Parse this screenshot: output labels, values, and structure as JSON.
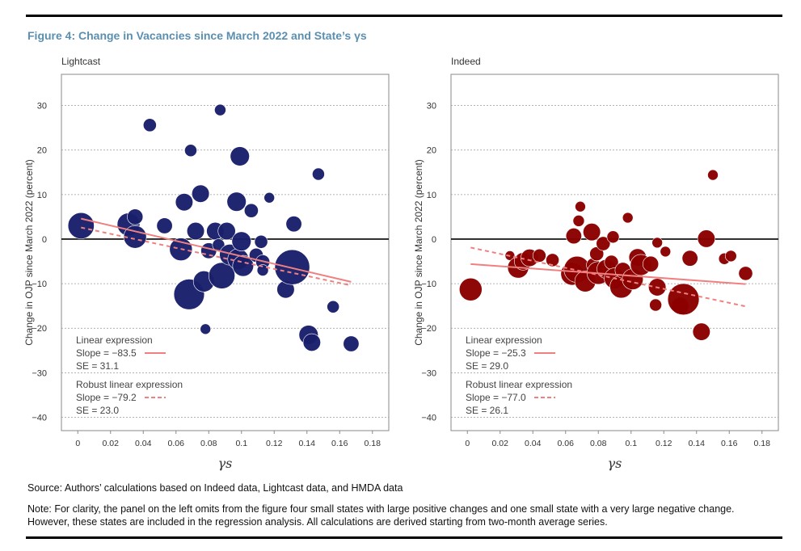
{
  "figure": {
    "title": "Figure 4: Change in Vacancies since March 2022 and State’s γs",
    "source": "Source: Authors’ calculations based on Indeed data, Lightcast data, and HMDA data",
    "note": "Note: For clarity, the panel on the left omits from the figure four small states with large positive changes and one small state with a very large negative change. However, these states are included in the regression analysis. All calculations are derived starting from two-month average series."
  },
  "chart_data": [
    {
      "type": "scatter",
      "title": "Lightcast",
      "xlabel": "γs",
      "ylabel": "Change in OJP since March 2022 (percent)",
      "xlim": [
        -0.01,
        0.19
      ],
      "ylim": [
        -43,
        37
      ],
      "xticks": [
        "0",
        "0.02",
        "0.04",
        "0.06",
        "0.08",
        "0.1",
        "0.12",
        "0.14",
        "0.16",
        "0.18"
      ],
      "yticks": [
        "30",
        "20",
        "10",
        "0",
        "−10",
        "−20",
        "−30",
        "−40"
      ],
      "color": "#1a1f6b",
      "points": [
        {
          "x": 0.002,
          "y": 3.0,
          "s": 3.0
        },
        {
          "x": 0.031,
          "y": 3.3,
          "s": 2.6
        },
        {
          "x": 0.035,
          "y": 0.5,
          "s": 2.6
        },
        {
          "x": 0.035,
          "y": 5.0,
          "s": 1.8
        },
        {
          "x": 0.044,
          "y": 25.6,
          "s": 1.5
        },
        {
          "x": 0.053,
          "y": 3.0,
          "s": 1.8
        },
        {
          "x": 0.063,
          "y": -2.3,
          "s": 2.6
        },
        {
          "x": 0.065,
          "y": 8.3,
          "s": 2.0
        },
        {
          "x": 0.068,
          "y": -12.4,
          "s": 3.5
        },
        {
          "x": 0.069,
          "y": 19.9,
          "s": 1.4
        },
        {
          "x": 0.072,
          "y": 1.8,
          "s": 2.0
        },
        {
          "x": 0.075,
          "y": 10.2,
          "s": 2.0
        },
        {
          "x": 0.077,
          "y": -9.5,
          "s": 2.4
        },
        {
          "x": 0.078,
          "y": -20.2,
          "s": 1.2
        },
        {
          "x": 0.08,
          "y": -2.6,
          "s": 1.8
        },
        {
          "x": 0.084,
          "y": 1.8,
          "s": 2.0
        },
        {
          "x": 0.086,
          "y": -1.3,
          "s": 1.4
        },
        {
          "x": 0.087,
          "y": 29.0,
          "s": 1.3
        },
        {
          "x": 0.088,
          "y": -8.2,
          "s": 3.0
        },
        {
          "x": 0.091,
          "y": 1.8,
          "s": 2.0
        },
        {
          "x": 0.093,
          "y": -3.5,
          "s": 2.4
        },
        {
          "x": 0.097,
          "y": 8.4,
          "s": 2.2
        },
        {
          "x": 0.098,
          "y": -4.5,
          "s": 2.4
        },
        {
          "x": 0.099,
          "y": 18.6,
          "s": 2.2
        },
        {
          "x": 0.1,
          "y": -0.5,
          "s": 2.2
        },
        {
          "x": 0.101,
          "y": -6.0,
          "s": 2.4
        },
        {
          "x": 0.106,
          "y": 6.4,
          "s": 1.6
        },
        {
          "x": 0.109,
          "y": -3.6,
          "s": 1.6
        },
        {
          "x": 0.112,
          "y": -0.6,
          "s": 1.5
        },
        {
          "x": 0.113,
          "y": -5.1,
          "s": 1.6
        },
        {
          "x": 0.113,
          "y": -7.0,
          "s": 1.3
        },
        {
          "x": 0.117,
          "y": 9.3,
          "s": 1.2
        },
        {
          "x": 0.127,
          "y": -11.3,
          "s": 2.0
        },
        {
          "x": 0.131,
          "y": -6.3,
          "s": 4.0
        },
        {
          "x": 0.132,
          "y": 3.4,
          "s": 1.8
        },
        {
          "x": 0.141,
          "y": -21.5,
          "s": 2.2
        },
        {
          "x": 0.143,
          "y": -23.2,
          "s": 2.0
        },
        {
          "x": 0.147,
          "y": 14.6,
          "s": 1.4
        },
        {
          "x": 0.156,
          "y": -15.2,
          "s": 1.4
        },
        {
          "x": 0.167,
          "y": -23.5,
          "s": 1.8
        }
      ],
      "linear_fit": {
        "label": "Linear expression",
        "slope_text": "Slope = −83.5",
        "se_text": "SE = 31.1",
        "x": [
          0.002,
          0.167
        ],
        "y": [
          4.6,
          -9.6
        ]
      },
      "robust_fit": {
        "label": "Robust linear expression",
        "slope_text": "Slope = −79.2",
        "se_text": "SE = 23.0",
        "x": [
          0.002,
          0.167
        ],
        "y": [
          2.6,
          -10.4
        ]
      }
    },
    {
      "type": "scatter",
      "title": "Indeed",
      "xlabel": "γs",
      "ylabel": "Change in OJP since March 2022 (percent)",
      "xlim": [
        -0.01,
        0.19
      ],
      "ylim": [
        -43,
        37
      ],
      "xticks": [
        "0",
        "0.02",
        "0.04",
        "0.06",
        "0.08",
        "0.1",
        "0.12",
        "0.14",
        "0.16",
        "0.18"
      ],
      "yticks": [
        "30",
        "20",
        "10",
        "0",
        "−10",
        "−20",
        "−30",
        "−40"
      ],
      "color": "#8b0000",
      "points": [
        {
          "x": 0.002,
          "y": -11.3,
          "s": 2.6
        },
        {
          "x": 0.026,
          "y": -3.7,
          "s": 1.1
        },
        {
          "x": 0.031,
          "y": -6.4,
          "s": 2.4
        },
        {
          "x": 0.034,
          "y": -5.0,
          "s": 2.0
        },
        {
          "x": 0.038,
          "y": -4.2,
          "s": 2.0
        },
        {
          "x": 0.044,
          "y": -3.7,
          "s": 1.5
        },
        {
          "x": 0.052,
          "y": -4.7,
          "s": 1.5
        },
        {
          "x": 0.064,
          "y": -7.8,
          "s": 2.6
        },
        {
          "x": 0.065,
          "y": 0.7,
          "s": 1.8
        },
        {
          "x": 0.067,
          "y": -6.8,
          "s": 3.0
        },
        {
          "x": 0.068,
          "y": 4.1,
          "s": 1.3
        },
        {
          "x": 0.069,
          "y": 7.3,
          "s": 1.2
        },
        {
          "x": 0.072,
          "y": -9.5,
          "s": 2.4
        },
        {
          "x": 0.076,
          "y": 1.6,
          "s": 2.0
        },
        {
          "x": 0.077,
          "y": -5.8,
          "s": 1.6
        },
        {
          "x": 0.079,
          "y": -3.3,
          "s": 1.6
        },
        {
          "x": 0.08,
          "y": -7.6,
          "s": 2.6
        },
        {
          "x": 0.083,
          "y": -1.0,
          "s": 1.6
        },
        {
          "x": 0.085,
          "y": -6.7,
          "s": 2.2
        },
        {
          "x": 0.088,
          "y": -5.2,
          "s": 1.6
        },
        {
          "x": 0.089,
          "y": 0.5,
          "s": 1.4
        },
        {
          "x": 0.09,
          "y": -8.8,
          "s": 2.4
        },
        {
          "x": 0.094,
          "y": -10.7,
          "s": 2.6
        },
        {
          "x": 0.095,
          "y": -7.0,
          "s": 1.8
        },
        {
          "x": 0.098,
          "y": 4.8,
          "s": 1.2
        },
        {
          "x": 0.101,
          "y": -9.0,
          "s": 2.4
        },
        {
          "x": 0.104,
          "y": -4.1,
          "s": 2.0
        },
        {
          "x": 0.106,
          "y": -5.8,
          "s": 2.4
        },
        {
          "x": 0.112,
          "y": -5.6,
          "s": 1.8
        },
        {
          "x": 0.115,
          "y": -14.8,
          "s": 1.4
        },
        {
          "x": 0.116,
          "y": -10.8,
          "s": 2.0
        },
        {
          "x": 0.116,
          "y": -0.8,
          "s": 1.2
        },
        {
          "x": 0.121,
          "y": -2.8,
          "s": 1.2
        },
        {
          "x": 0.13,
          "y": -15.0,
          "s": 2.0
        },
        {
          "x": 0.132,
          "y": -13.5,
          "s": 3.6
        },
        {
          "x": 0.136,
          "y": -4.3,
          "s": 1.8
        },
        {
          "x": 0.143,
          "y": -20.8,
          "s": 2.0
        },
        {
          "x": 0.146,
          "y": 0.1,
          "s": 2.0
        },
        {
          "x": 0.15,
          "y": 14.4,
          "s": 1.2
        },
        {
          "x": 0.157,
          "y": -4.4,
          "s": 1.3
        },
        {
          "x": 0.161,
          "y": -3.8,
          "s": 1.3
        },
        {
          "x": 0.17,
          "y": -7.7,
          "s": 1.6
        }
      ],
      "linear_fit": {
        "label": "Linear expression",
        "slope_text": "Slope = −25.3",
        "se_text": "SE = 29.0",
        "x": [
          0.002,
          0.17
        ],
        "y": [
          -5.6,
          -10.1
        ]
      },
      "robust_fit": {
        "label": "Robust linear expression",
        "slope_text": "Slope = −77.0",
        "se_text": "SE = 26.1",
        "x": [
          0.002,
          0.17
        ],
        "y": [
          -1.9,
          -15.1
        ]
      }
    }
  ],
  "colors": {
    "grid": "#999999",
    "axis": "#888888",
    "fit": "#f08080",
    "zero_line": "#000000",
    "title": "#5b8fb0"
  }
}
